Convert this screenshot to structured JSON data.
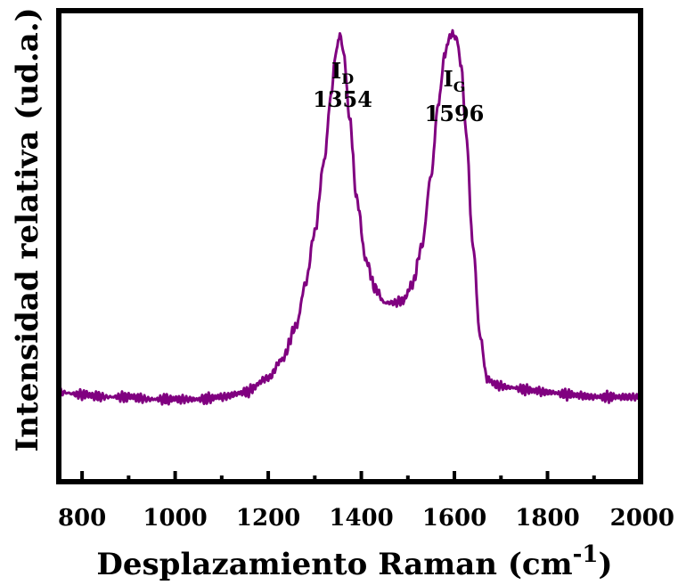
{
  "chart_data": {
    "type": "line",
    "title": "",
    "xlabel": "Desplazamiento Raman (cm",
    "xlabel_sup": "-1",
    "xlabel_close": ")",
    "ylabel": "Intensidad relativa (ud.a.)",
    "xlim": [
      750,
      2000
    ],
    "ylim": [
      0,
      1
    ],
    "y_ticks_shown": false,
    "grid": false,
    "legend": "none",
    "x_ticks": [
      800,
      1000,
      1200,
      1400,
      1600,
      1800,
      2000
    ],
    "x_tick_labels": [
      "800",
      "1000",
      "1200",
      "1400",
      "1600",
      "1800",
      "2000"
    ],
    "x_minor_ticks": [
      900,
      1100,
      1300,
      1500,
      1700,
      1900
    ],
    "line_color": "#800080",
    "series": [
      {
        "x": [
          750,
          800,
          850,
          900,
          950,
          1000,
          1050,
          1100,
          1150,
          1200,
          1230,
          1260,
          1280,
          1300,
          1320,
          1335,
          1345,
          1354,
          1362,
          1375,
          1390,
          1410,
          1430,
          1450,
          1470,
          1490,
          1510,
          1530,
          1550,
          1565,
          1580,
          1590,
          1596,
          1605,
          1615,
          1625,
          1640,
          1655,
          1670,
          1690,
          1720,
          1760,
          1800,
          1850,
          1900,
          1950,
          2000
        ],
        "y": [
          0.19,
          0.185,
          0.18,
          0.18,
          0.175,
          0.175,
          0.175,
          0.18,
          0.19,
          0.22,
          0.26,
          0.33,
          0.42,
          0.53,
          0.68,
          0.82,
          0.91,
          0.95,
          0.91,
          0.77,
          0.6,
          0.47,
          0.41,
          0.38,
          0.38,
          0.385,
          0.42,
          0.5,
          0.65,
          0.8,
          0.91,
          0.945,
          0.95,
          0.94,
          0.88,
          0.74,
          0.5,
          0.31,
          0.22,
          0.205,
          0.2,
          0.195,
          0.19,
          0.185,
          0.18,
          0.18,
          0.18
        ]
      }
    ],
    "annotations": [
      {
        "main": "I",
        "sub": "D",
        "value": "1354",
        "x": 1354
      },
      {
        "main": "I",
        "sub": "G",
        "value": "1596",
        "x": 1596
      }
    ]
  }
}
